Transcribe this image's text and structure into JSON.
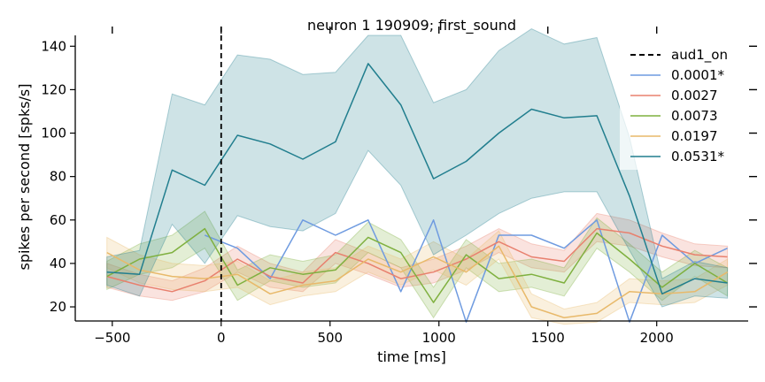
{
  "chart_data": {
    "type": "line",
    "title": "neuron 1 190909; first_sound",
    "xlabel": "time [ms]",
    "ylabel": "spikes per second [spks/s]",
    "xlim": [
      -670,
      2420
    ],
    "ylim": [
      13.5,
      145
    ],
    "xticks": [
      -500,
      0,
      500,
      1000,
      1500,
      2000
    ],
    "xtick_labels": [
      "−500",
      "0",
      "500",
      "1000",
      "1500",
      "2000"
    ],
    "yticks": [
      20,
      40,
      60,
      80,
      100,
      120,
      140
    ],
    "ytick_labels": [
      "20",
      "40",
      "60",
      "80",
      "100",
      "120",
      "140"
    ],
    "grid": false,
    "legend_position": "top-right",
    "vline": {
      "name": "aud1_on",
      "x": 0,
      "style": "dashed",
      "color": "#000000"
    },
    "x": [
      -525,
      -375,
      -225,
      -75,
      75,
      225,
      375,
      525,
      675,
      825,
      975,
      1125,
      1275,
      1425,
      1575,
      1725,
      1875,
      2025,
      2175,
      2325
    ],
    "series": [
      {
        "name": "0.0001*",
        "color": "#6f9be0",
        "values": [
          null,
          null,
          null,
          53,
          47,
          33,
          60,
          53,
          60,
          27,
          60,
          13,
          53,
          53,
          47,
          60,
          13,
          53,
          40,
          47
        ],
        "lower": null,
        "upper": null
      },
      {
        "name": "0.0027",
        "color": "#e8806e",
        "values": [
          34,
          30,
          27,
          32,
          42,
          34,
          31,
          45,
          40,
          33,
          36,
          42,
          50,
          43,
          41,
          56,
          54,
          48,
          44,
          43
        ],
        "lower": [
          29,
          25,
          23,
          27,
          36,
          29,
          27,
          40,
          35,
          29,
          31,
          37,
          45,
          38,
          36,
          50,
          48,
          43,
          39,
          38
        ],
        "upper": [
          40,
          35,
          32,
          38,
          48,
          40,
          36,
          51,
          45,
          38,
          42,
          48,
          56,
          49,
          46,
          63,
          60,
          54,
          49,
          48
        ]
      },
      {
        "name": "0.0073",
        "color": "#7fb03f",
        "values": [
          34,
          42,
          45,
          56,
          30,
          38,
          35,
          37,
          52,
          45,
          22,
          44,
          33,
          35,
          31,
          54,
          42,
          29,
          40,
          31
        ],
        "lower": [
          28,
          35,
          38,
          47,
          23,
          32,
          29,
          31,
          45,
          38,
          15,
          38,
          27,
          29,
          25,
          47,
          36,
          23,
          34,
          25
        ],
        "upper": [
          41,
          49,
          53,
          64,
          37,
          44,
          41,
          44,
          59,
          51,
          29,
          51,
          40,
          42,
          38,
          61,
          49,
          36,
          46,
          38
        ]
      },
      {
        "name": "0.0197",
        "color": "#e8b96a",
        "values": [
          45,
          37,
          34,
          33,
          35,
          26,
          30,
          32,
          42,
          36,
          43,
          36,
          48,
          20,
          15,
          17,
          27,
          26,
          27,
          36
        ],
        "lower": [
          38,
          31,
          28,
          27,
          29,
          21,
          25,
          27,
          36,
          30,
          37,
          30,
          42,
          15,
          12,
          13,
          22,
          21,
          22,
          30
        ],
        "upper": [
          52,
          44,
          40,
          39,
          41,
          32,
          36,
          38,
          48,
          42,
          50,
          42,
          55,
          26,
          19,
          22,
          33,
          32,
          33,
          42
        ]
      },
      {
        "name": "0.0531*",
        "color": "#217e8e",
        "values": [
          36,
          35,
          83,
          76,
          99,
          95,
          88,
          96,
          132,
          113,
          79,
          87,
          100,
          111,
          107,
          108,
          71,
          26,
          33,
          31
        ],
        "lower": [
          30,
          25,
          58,
          40,
          62,
          57,
          55,
          63,
          92,
          76,
          44,
          53,
          63,
          70,
          73,
          73,
          46,
          20,
          25,
          24
        ],
        "upper": [
          43,
          46,
          118,
          113,
          136,
          134,
          127,
          128,
          145,
          145,
          114,
          120,
          138,
          148,
          141,
          144,
          98,
          33,
          41,
          38
        ]
      }
    ]
  }
}
